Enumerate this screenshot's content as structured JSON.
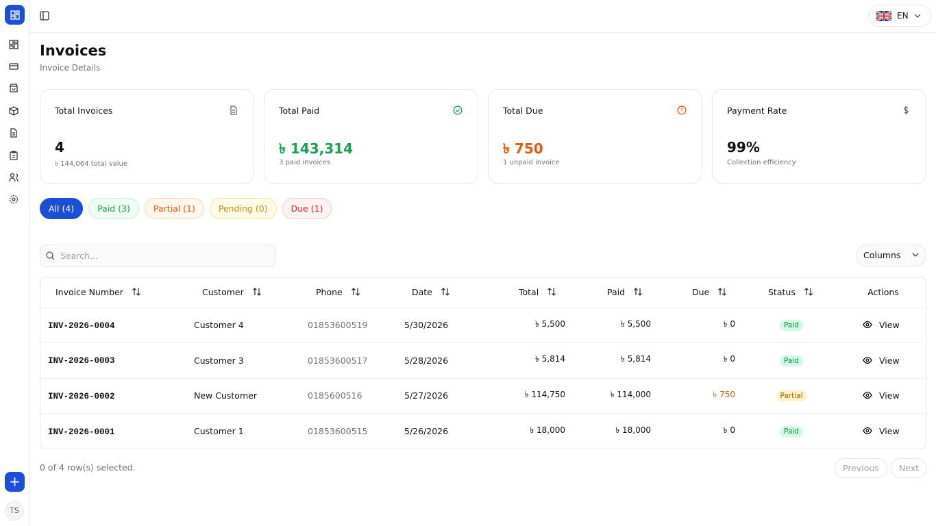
{
  "sidebar": {
    "avatar": "TS"
  },
  "topbar": {
    "language": "EN"
  },
  "header": {
    "title": "Invoices",
    "subtitle": "Invoice Details"
  },
  "stats": [
    {
      "label": "Total Invoices",
      "value": "4",
      "note": "৳ 144,064 total value"
    },
    {
      "label": "Total Paid",
      "value": "৳ 143,314",
      "note": "3 paid invoices"
    },
    {
      "label": "Total Due",
      "value": "৳ 750",
      "note": "1 unpaid invoice"
    },
    {
      "label": "Payment Rate",
      "value": "99%",
      "note": "Collection efficiency"
    }
  ],
  "filters": [
    "All (4)",
    "Paid (3)",
    "Partial (1)",
    "Pending (0)",
    "Due (1)"
  ],
  "search_placeholder": "Search...",
  "columns_button": "Columns",
  "table": {
    "columns": [
      "Invoice Number",
      "Customer",
      "Phone",
      "Date",
      "Total",
      "Paid",
      "Due",
      "Status",
      "Actions"
    ],
    "rows": [
      [
        "INV-2026-0004",
        "Customer 4",
        "01853600519",
        "5/30/2026",
        "৳ 5,500",
        "৳ 5,500",
        "৳ 0",
        "Paid",
        "View"
      ],
      [
        "INV-2026-0003",
        "Customer 3",
        "01853600517",
        "5/28/2026",
        "৳ 5,814",
        "৳ 5,814",
        "৳ 0",
        "Paid",
        "View"
      ],
      [
        "INV-2026-0002",
        "New Customer",
        "0185600516",
        "5/27/2026",
        "৳ 114,750",
        "৳ 114,000",
        "৳ 750",
        "Partial",
        "View"
      ],
      [
        "INV-2026-0001",
        "Customer 1",
        "01853600515",
        "5/26/2026",
        "৳ 18,000",
        "৳ 18,000",
        "৳ 0",
        "Paid",
        "View"
      ]
    ]
  },
  "footer": {
    "selection": "0 of 4 row(s) selected.",
    "previous": "Previous",
    "next": "Next"
  }
}
